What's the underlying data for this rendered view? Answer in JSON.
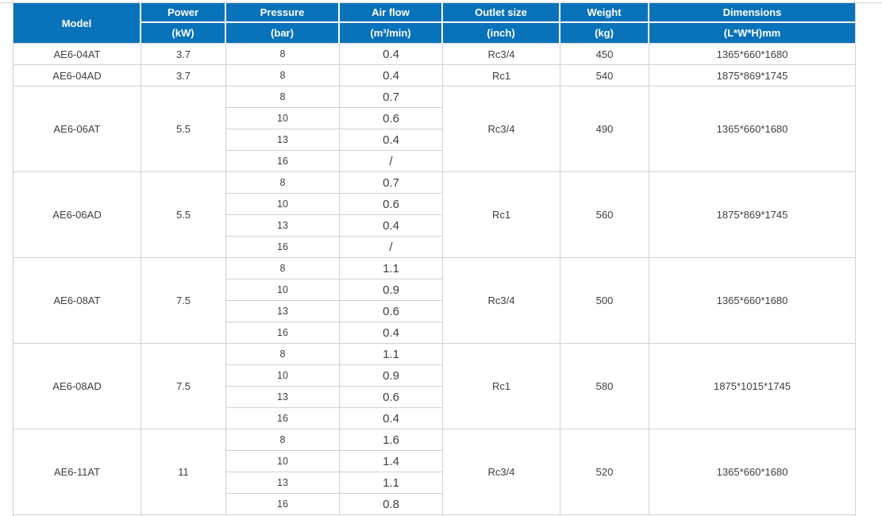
{
  "colors": {
    "header_bg": "#0872ba",
    "header_text": "#ffffff",
    "border": "#d2d2d2",
    "text": "#3f3f3f",
    "page_bg": "#ffffff"
  },
  "chart_data": {
    "type": "table",
    "title": "",
    "header": {
      "model_label": "Model",
      "columns": [
        {
          "key": "power",
          "label": "Power",
          "unit": "(kW)"
        },
        {
          "key": "pressure",
          "label": "Pressure",
          "unit": "(bar)"
        },
        {
          "key": "airflow",
          "label": "Air flow",
          "unit": "(m³/min)"
        },
        {
          "key": "outlet",
          "label": "Outlet size",
          "unit": "(inch)"
        },
        {
          "key": "weight",
          "label": "Weight",
          "unit": "(kg)"
        },
        {
          "key": "dimensions",
          "label": "Dimensions",
          "unit": "(L*W*H)mm"
        }
      ]
    },
    "groups": [
      {
        "model": "AE6-04AT",
        "power": "3.7",
        "rows": [
          {
            "pressure": "8",
            "airflow": "0.4"
          }
        ],
        "outlet": "Rc3/4",
        "weight": "450",
        "dimensions": "1365*660*1680"
      },
      {
        "model": "AE6-04AD",
        "power": "3.7",
        "rows": [
          {
            "pressure": "8",
            "airflow": "0.4"
          }
        ],
        "outlet": "Rc1",
        "weight": "540",
        "dimensions": "1875*869*1745"
      },
      {
        "model": "AE6-06AT",
        "power": "5.5",
        "rows": [
          {
            "pressure": "8",
            "airflow": "0.7"
          },
          {
            "pressure": "10",
            "airflow": "0.6"
          },
          {
            "pressure": "13",
            "airflow": "0.4"
          },
          {
            "pressure": "16",
            "airflow": "/"
          }
        ],
        "outlet": "Rc3/4",
        "weight": "490",
        "dimensions": "1365*660*1680"
      },
      {
        "model": "AE6-06AD",
        "power": "5.5",
        "rows": [
          {
            "pressure": "8",
            "airflow": "0.7"
          },
          {
            "pressure": "10",
            "airflow": "0.6"
          },
          {
            "pressure": "13",
            "airflow": "0.4"
          },
          {
            "pressure": "16",
            "airflow": "/"
          }
        ],
        "outlet": "Rc1",
        "weight": "560",
        "dimensions": "1875*869*1745"
      },
      {
        "model": "AE6-08AT",
        "power": "7.5",
        "rows": [
          {
            "pressure": "8",
            "airflow": "1.1"
          },
          {
            "pressure": "10",
            "airflow": "0.9"
          },
          {
            "pressure": "13",
            "airflow": "0.6"
          },
          {
            "pressure": "16",
            "airflow": "0.4"
          }
        ],
        "outlet": "Rc3/4",
        "weight": "500",
        "dimensions": "1365*660*1680"
      },
      {
        "model": "AE6-08AD",
        "power": "7.5",
        "rows": [
          {
            "pressure": "8",
            "airflow": "1.1"
          },
          {
            "pressure": "10",
            "airflow": "0.9"
          },
          {
            "pressure": "13",
            "airflow": "0.6"
          },
          {
            "pressure": "16",
            "airflow": "0.4"
          }
        ],
        "outlet": "Rc1",
        "weight": "580",
        "dimensions": "1875*1015*1745"
      },
      {
        "model": "AE6-11AT",
        "power": "11",
        "rows": [
          {
            "pressure": "8",
            "airflow": "1.6"
          },
          {
            "pressure": "10",
            "airflow": "1.4"
          },
          {
            "pressure": "13",
            "airflow": "1.1"
          },
          {
            "pressure": "16",
            "airflow": "0.8"
          }
        ],
        "outlet": "Rc3/4",
        "weight": "520",
        "dimensions": "1365*660*1680"
      }
    ]
  }
}
